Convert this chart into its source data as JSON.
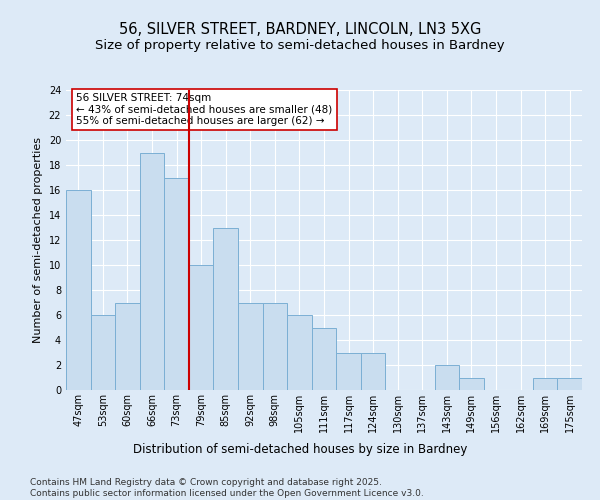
{
  "title_line1": "56, SILVER STREET, BARDNEY, LINCOLN, LN3 5XG",
  "title_line2": "Size of property relative to semi-detached houses in Bardney",
  "xlabel": "Distribution of semi-detached houses by size in Bardney",
  "ylabel": "Number of semi-detached properties",
  "categories": [
    "47sqm",
    "53sqm",
    "60sqm",
    "66sqm",
    "73sqm",
    "79sqm",
    "85sqm",
    "92sqm",
    "98sqm",
    "105sqm",
    "111sqm",
    "117sqm",
    "124sqm",
    "130sqm",
    "137sqm",
    "143sqm",
    "149sqm",
    "156sqm",
    "162sqm",
    "169sqm",
    "175sqm"
  ],
  "values": [
    16,
    6,
    7,
    19,
    17,
    10,
    13,
    7,
    7,
    6,
    5,
    3,
    3,
    0,
    0,
    2,
    1,
    0,
    0,
    1,
    1
  ],
  "bar_color": "#c9ddef",
  "bar_edge_color": "#7bafd4",
  "background_color": "#ddeaf7",
  "vline_color": "#cc0000",
  "vline_x_index": 4,
  "annotation_line1": "56 SILVER STREET: 74sqm",
  "annotation_line2": "← 43% of semi-detached houses are smaller (48)",
  "annotation_line3": "55% of semi-detached houses are larger (62) →",
  "annotation_box_facecolor": "#ffffff",
  "annotation_box_edgecolor": "#cc0000",
  "ylim": [
    0,
    24
  ],
  "yticks": [
    0,
    2,
    4,
    6,
    8,
    10,
    12,
    14,
    16,
    18,
    20,
    22,
    24
  ],
  "title_fontsize": 10.5,
  "subtitle_fontsize": 9.5,
  "tick_fontsize": 7,
  "ylabel_fontsize": 8,
  "xlabel_fontsize": 8.5,
  "annotation_fontsize": 7.5,
  "footer_fontsize": 6.5,
  "footer_line1": "Contains HM Land Registry data © Crown copyright and database right 2025.",
  "footer_line2": "Contains public sector information licensed under the Open Government Licence v3.0."
}
